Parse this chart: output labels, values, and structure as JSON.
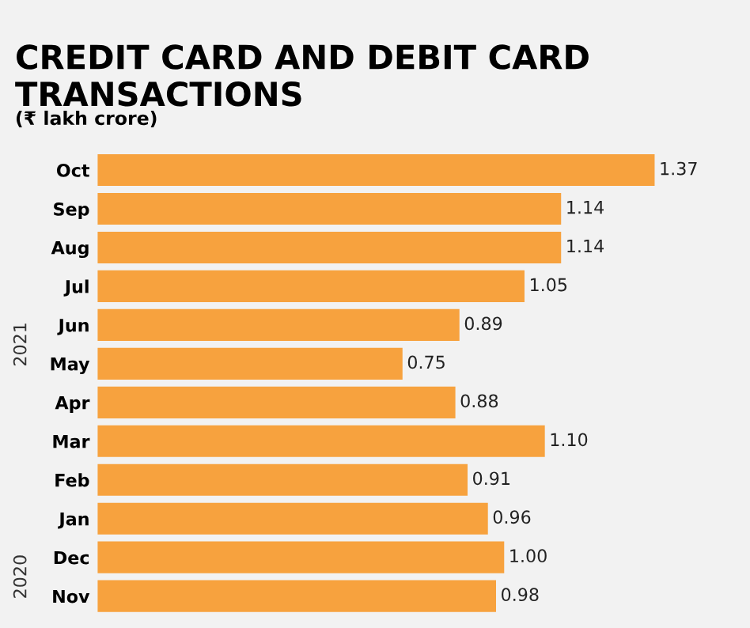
{
  "chart_data": {
    "type": "bar",
    "orientation": "horizontal",
    "title": "CREDIT CARD AND DEBIT CARD TRANSACTIONS",
    "subtitle": "(₹ lakh crore)",
    "categories": [
      "Oct",
      "Sep",
      "Aug",
      "Jul",
      "Jun",
      "May",
      "Apr",
      "Mar",
      "Feb",
      "Jan",
      "Dec",
      "Nov"
    ],
    "values": [
      1.37,
      1.14,
      1.14,
      1.05,
      0.89,
      0.75,
      0.88,
      1.1,
      0.91,
      0.96,
      1.0,
      0.98
    ],
    "value_labels": [
      "1.37",
      "1.14",
      "1.14",
      "1.05",
      "0.89",
      "0.75",
      "0.88",
      "1.10",
      "0.91",
      "0.96",
      "1.00",
      "0.98"
    ],
    "color": "#f7a23e",
    "annotations": [
      "2021",
      "2020"
    ]
  }
}
